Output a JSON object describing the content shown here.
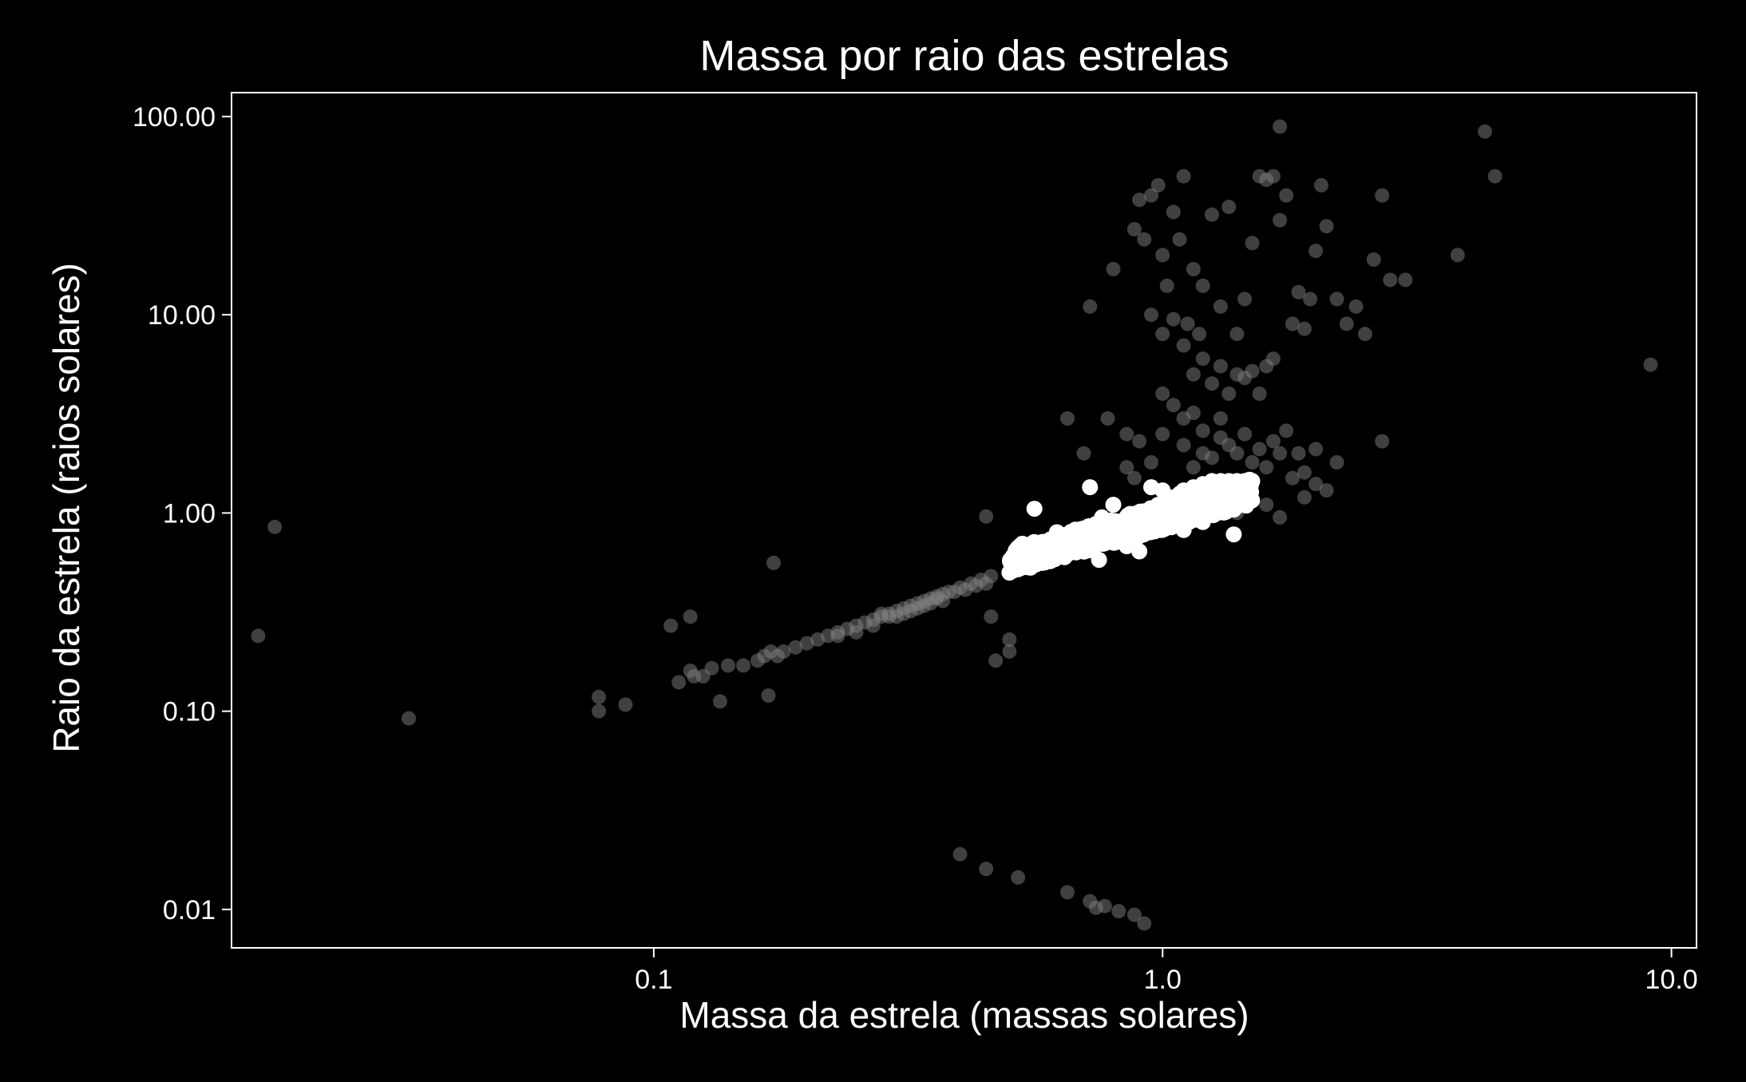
{
  "chart_data": {
    "type": "scatter",
    "title": "Massa por raio das estrelas",
    "xlabel": "Massa da estrela (massas solares)",
    "ylabel": "Raio da estrela (raios solares)",
    "x_scale": "log",
    "y_scale": "log",
    "xlim": [
      0.0148,
      11.2
    ],
    "ylim": [
      0.0064,
      132
    ],
    "xticks": [
      0.1,
      1.0,
      10.0
    ],
    "xtick_labels": [
      "0.1",
      "1.0",
      "10.0"
    ],
    "yticks": [
      0.01,
      0.1,
      1.0,
      10.0,
      100.0
    ],
    "ytick_labels": [
      "0.01",
      "0.10",
      "1.00",
      "10.00",
      "100.00"
    ],
    "grid": false,
    "legend": "none",
    "colors": {
      "background": "#000000",
      "axes": "#ffffff",
      "text": "#ffffff",
      "series_all": "#808080",
      "series_highlight": "#ffffff"
    },
    "series": [
      {
        "color": "#808080",
        "opacity": 0.5,
        "points": [
          [
            0.018,
            0.85
          ],
          [
            0.0167,
            0.24
          ],
          [
            0.033,
            0.092
          ],
          [
            0.078,
            0.118
          ],
          [
            0.078,
            0.1
          ],
          [
            0.088,
            0.108
          ],
          [
            0.108,
            0.27
          ],
          [
            0.118,
            0.3
          ],
          [
            0.112,
            0.14
          ],
          [
            0.118,
            0.16
          ],
          [
            0.12,
            0.15
          ],
          [
            0.125,
            0.15
          ],
          [
            0.13,
            0.165
          ],
          [
            0.135,
            0.112
          ],
          [
            0.14,
            0.17
          ],
          [
            0.15,
            0.17
          ],
          [
            0.16,
            0.18
          ],
          [
            0.165,
            0.19
          ],
          [
            0.17,
            0.2
          ],
          [
            0.175,
            0.19
          ],
          [
            0.18,
            0.2
          ],
          [
            0.19,
            0.21
          ],
          [
            0.2,
            0.22
          ],
          [
            0.168,
            0.12
          ],
          [
            0.172,
            0.56
          ],
          [
            0.21,
            0.23
          ],
          [
            0.22,
            0.24
          ],
          [
            0.23,
            0.25
          ],
          [
            0.24,
            0.26
          ],
          [
            0.25,
            0.27
          ],
          [
            0.26,
            0.28
          ],
          [
            0.27,
            0.29
          ],
          [
            0.28,
            0.3
          ],
          [
            0.29,
            0.31
          ],
          [
            0.3,
            0.32
          ],
          [
            0.31,
            0.33
          ],
          [
            0.32,
            0.34
          ],
          [
            0.33,
            0.35
          ],
          [
            0.34,
            0.36
          ],
          [
            0.35,
            0.37
          ],
          [
            0.36,
            0.38
          ],
          [
            0.37,
            0.39
          ],
          [
            0.38,
            0.4
          ],
          [
            0.4,
            0.42
          ],
          [
            0.42,
            0.44
          ],
          [
            0.44,
            0.46
          ],
          [
            0.46,
            0.48
          ],
          [
            0.5,
            0.5
          ],
          [
            0.23,
            0.24
          ],
          [
            0.25,
            0.25
          ],
          [
            0.27,
            0.27
          ],
          [
            0.29,
            0.3
          ],
          [
            0.31,
            0.31
          ],
          [
            0.33,
            0.33
          ],
          [
            0.35,
            0.35
          ],
          [
            0.37,
            0.36
          ],
          [
            0.39,
            0.4
          ],
          [
            0.41,
            0.41
          ],
          [
            0.43,
            0.43
          ],
          [
            0.45,
            0.44
          ],
          [
            0.28,
            0.31
          ],
          [
            0.3,
            0.3
          ],
          [
            0.32,
            0.32
          ],
          [
            0.34,
            0.34
          ],
          [
            0.36,
            0.37
          ],
          [
            0.45,
            0.96
          ],
          [
            0.47,
            0.18
          ],
          [
            0.5,
            0.2
          ],
          [
            0.5,
            0.23
          ],
          [
            0.46,
            0.3
          ],
          [
            0.6,
            0.6
          ],
          [
            0.55,
            0.55
          ],
          [
            0.65,
            3.0
          ],
          [
            0.7,
            2.0
          ],
          [
            0.72,
            11.0
          ],
          [
            0.78,
            3.0
          ],
          [
            0.8,
            17.0
          ],
          [
            0.85,
            2.5
          ],
          [
            0.88,
            27.0
          ],
          [
            0.9,
            38.0
          ],
          [
            0.92,
            24.0
          ],
          [
            0.95,
            40.0
          ],
          [
            0.98,
            45.0
          ],
          [
            1.0,
            20.0
          ],
          [
            1.02,
            14.0
          ],
          [
            1.05,
            33.0
          ],
          [
            1.08,
            24.0
          ],
          [
            1.1,
            50.0
          ],
          [
            1.12,
            9.0
          ],
          [
            1.15,
            17.0
          ],
          [
            1.18,
            8.0
          ],
          [
            1.2,
            14.0
          ],
          [
            1.25,
            32.0
          ],
          [
            1.3,
            11.0
          ],
          [
            1.35,
            35.0
          ],
          [
            1.4,
            8.0
          ],
          [
            1.45,
            12.0
          ],
          [
            1.5,
            23.0
          ],
          [
            1.55,
            50.0
          ],
          [
            1.6,
            48.0
          ],
          [
            1.65,
            50.0
          ],
          [
            1.7,
            30.0
          ],
          [
            1.75,
            40.0
          ],
          [
            1.8,
            9.0
          ],
          [
            1.85,
            13.0
          ],
          [
            1.9,
            8.5
          ],
          [
            1.95,
            12.0
          ],
          [
            2.0,
            21.0
          ],
          [
            2.05,
            45.0
          ],
          [
            2.1,
            28.0
          ],
          [
            2.2,
            12.0
          ],
          [
            2.3,
            9.0
          ],
          [
            2.4,
            11.0
          ],
          [
            2.5,
            8.0
          ],
          [
            2.6,
            19.0
          ],
          [
            2.7,
            40.0
          ],
          [
            2.8,
            15.0
          ],
          [
            3.0,
            15.0
          ],
          [
            3.8,
            20.0
          ],
          [
            4.3,
            84.0
          ],
          [
            4.5,
            50.0
          ],
          [
            1.7,
            89.0
          ],
          [
            9.1,
            5.6
          ],
          [
            2.7,
            2.3
          ],
          [
            2.2,
            1.8
          ],
          [
            0.95,
            10.0
          ],
          [
            1.0,
            8.0
          ],
          [
            1.05,
            9.5
          ],
          [
            1.1,
            7.0
          ],
          [
            1.15,
            5.0
          ],
          [
            1.2,
            6.0
          ],
          [
            1.25,
            4.5
          ],
          [
            1.3,
            5.5
          ],
          [
            1.35,
            4.0
          ],
          [
            1.4,
            5.0
          ],
          [
            1.45,
            4.8
          ],
          [
            1.5,
            5.2
          ],
          [
            1.55,
            4.0
          ],
          [
            1.6,
            5.5
          ],
          [
            1.65,
            6.0
          ],
          [
            1.0,
            4.0
          ],
          [
            1.05,
            3.5
          ],
          [
            1.1,
            3.0
          ],
          [
            1.15,
            3.2
          ],
          [
            1.2,
            2.6
          ],
          [
            1.0,
            2.5
          ],
          [
            1.1,
            2.2
          ],
          [
            1.2,
            2.0
          ],
          [
            1.3,
            2.4
          ],
          [
            1.4,
            2.0
          ],
          [
            1.5,
            1.8
          ],
          [
            1.6,
            1.7
          ],
          [
            1.7,
            2.0
          ],
          [
            1.8,
            1.5
          ],
          [
            1.9,
            1.6
          ],
          [
            2.0,
            1.4
          ],
          [
            2.1,
            1.3
          ],
          [
            1.6,
            1.1
          ],
          [
            1.7,
            0.95
          ],
          [
            1.9,
            1.2
          ],
          [
            2.0,
            2.1
          ],
          [
            1.4,
            1.0
          ],
          [
            1.3,
            3.0
          ],
          [
            0.95,
            1.8
          ],
          [
            0.9,
            2.3
          ],
          [
            0.85,
            1.7
          ],
          [
            0.88,
            1.5
          ],
          [
            1.15,
            1.7
          ],
          [
            1.25,
            1.9
          ],
          [
            1.35,
            2.2
          ],
          [
            1.45,
            2.5
          ],
          [
            1.55,
            2.1
          ],
          [
            1.65,
            2.3
          ],
          [
            1.75,
            2.6
          ],
          [
            1.85,
            2.0
          ],
          [
            0.4,
            0.019
          ],
          [
            0.45,
            0.016
          ],
          [
            0.52,
            0.0145
          ],
          [
            0.65,
            0.0122
          ],
          [
            0.72,
            0.011
          ],
          [
            0.74,
            0.0102
          ],
          [
            0.77,
            0.0104
          ],
          [
            0.82,
            0.0098
          ],
          [
            0.88,
            0.0094
          ],
          [
            0.92,
            0.0085
          ]
        ]
      },
      {
        "color": "#ffffff",
        "opacity": 1.0,
        "region": {
          "x_range": [
            0.5,
            1.5
          ],
          "band_low_at_x_min": 0.5,
          "band_high_at_x_min": 0.66,
          "band_low_at_x_max": 1.1,
          "band_high_at_x_max": 1.5
        },
        "points": [
          [
            0.5,
            0.5
          ],
          [
            0.52,
            0.52
          ],
          [
            0.55,
            0.53
          ],
          [
            0.58,
            0.56
          ],
          [
            0.6,
            0.6
          ],
          [
            0.62,
            0.62
          ],
          [
            0.65,
            0.65
          ],
          [
            0.68,
            0.7
          ],
          [
            0.7,
            0.72
          ],
          [
            0.72,
            0.75
          ],
          [
            0.75,
            0.78
          ],
          [
            0.78,
            0.82
          ],
          [
            0.8,
            0.85
          ],
          [
            0.82,
            0.88
          ],
          [
            0.85,
            0.9
          ],
          [
            0.88,
            0.95
          ],
          [
            0.9,
            1.0
          ],
          [
            0.92,
            1.02
          ],
          [
            0.95,
            1.05
          ],
          [
            0.98,
            1.1
          ],
          [
            1.0,
            1.12
          ],
          [
            1.02,
            1.15
          ],
          [
            1.05,
            1.2
          ],
          [
            1.08,
            1.25
          ],
          [
            1.1,
            1.3
          ],
          [
            1.15,
            1.35
          ],
          [
            1.2,
            1.4
          ],
          [
            1.25,
            1.45
          ],
          [
            1.3,
            1.45
          ],
          [
            1.35,
            1.45
          ],
          [
            1.4,
            1.45
          ],
          [
            1.45,
            1.45
          ],
          [
            1.5,
            1.45
          ],
          [
            0.53,
            0.7
          ],
          [
            0.56,
            1.05
          ],
          [
            0.62,
            0.8
          ],
          [
            0.72,
            1.35
          ],
          [
            0.75,
            0.58
          ],
          [
            0.85,
            0.68
          ],
          [
            0.9,
            0.64
          ],
          [
            1.1,
            0.82
          ],
          [
            1.2,
            0.9
          ],
          [
            1.38,
            0.78
          ],
          [
            1.3,
            1.1
          ],
          [
            0.95,
            1.35
          ],
          [
            1.0,
            1.3
          ],
          [
            0.8,
            1.1
          ],
          [
            0.76,
            0.95
          ]
        ]
      }
    ]
  }
}
